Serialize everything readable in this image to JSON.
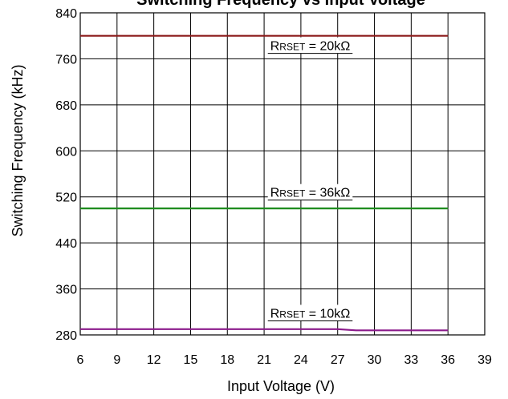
{
  "chart_data": {
    "type": "line",
    "title": "Switching Frequency vs Input Voltage",
    "xlabel": "Input Voltage (V)",
    "ylabel": "Switching Frequency (kHz)",
    "xlim": [
      6,
      39
    ],
    "ylim": [
      280,
      840
    ],
    "x_ticks": [
      6,
      9,
      12,
      15,
      18,
      21,
      24,
      27,
      30,
      33,
      36,
      39
    ],
    "y_ticks": [
      280,
      360,
      440,
      520,
      600,
      680,
      760,
      840
    ],
    "grid": true,
    "series": [
      {
        "key": "r20k",
        "color": "#8b1a1a",
        "x": [
          6,
          9,
          12,
          15,
          18,
          21,
          24,
          27,
          30,
          33,
          36
        ],
        "y": [
          800,
          800,
          800,
          800,
          800,
          800,
          800,
          800,
          800,
          800,
          800
        ]
      },
      {
        "key": "r36k",
        "color": "#1e8c1e",
        "x": [
          6,
          9,
          12,
          15,
          18,
          21,
          24,
          27,
          30,
          33,
          36
        ],
        "y": [
          500,
          500,
          500,
          500,
          500,
          500,
          500,
          500,
          500,
          500,
          500
        ]
      },
      {
        "key": "r10k",
        "color": "#8b1a8b",
        "x": [
          6,
          9,
          12,
          15,
          18,
          21,
          24,
          27,
          28.5,
          30,
          33,
          36
        ],
        "y": [
          290,
          290,
          290,
          290,
          290,
          290,
          290,
          290,
          288,
          288,
          288,
          288
        ]
      }
    ],
    "annotations": [
      {
        "key": "r20k",
        "prefix": "R",
        "sub": "RSET",
        "text": " = 20kΩ",
        "x": 21.5,
        "y": 775
      },
      {
        "key": "r36k",
        "prefix": "R",
        "sub": "RSET",
        "text": " = 36kΩ",
        "x": 21.5,
        "y": 520
      },
      {
        "key": "r10k",
        "prefix": "R",
        "sub": "RSET",
        "text": " = 10kΩ",
        "x": 21.5,
        "y": 310
      }
    ]
  }
}
